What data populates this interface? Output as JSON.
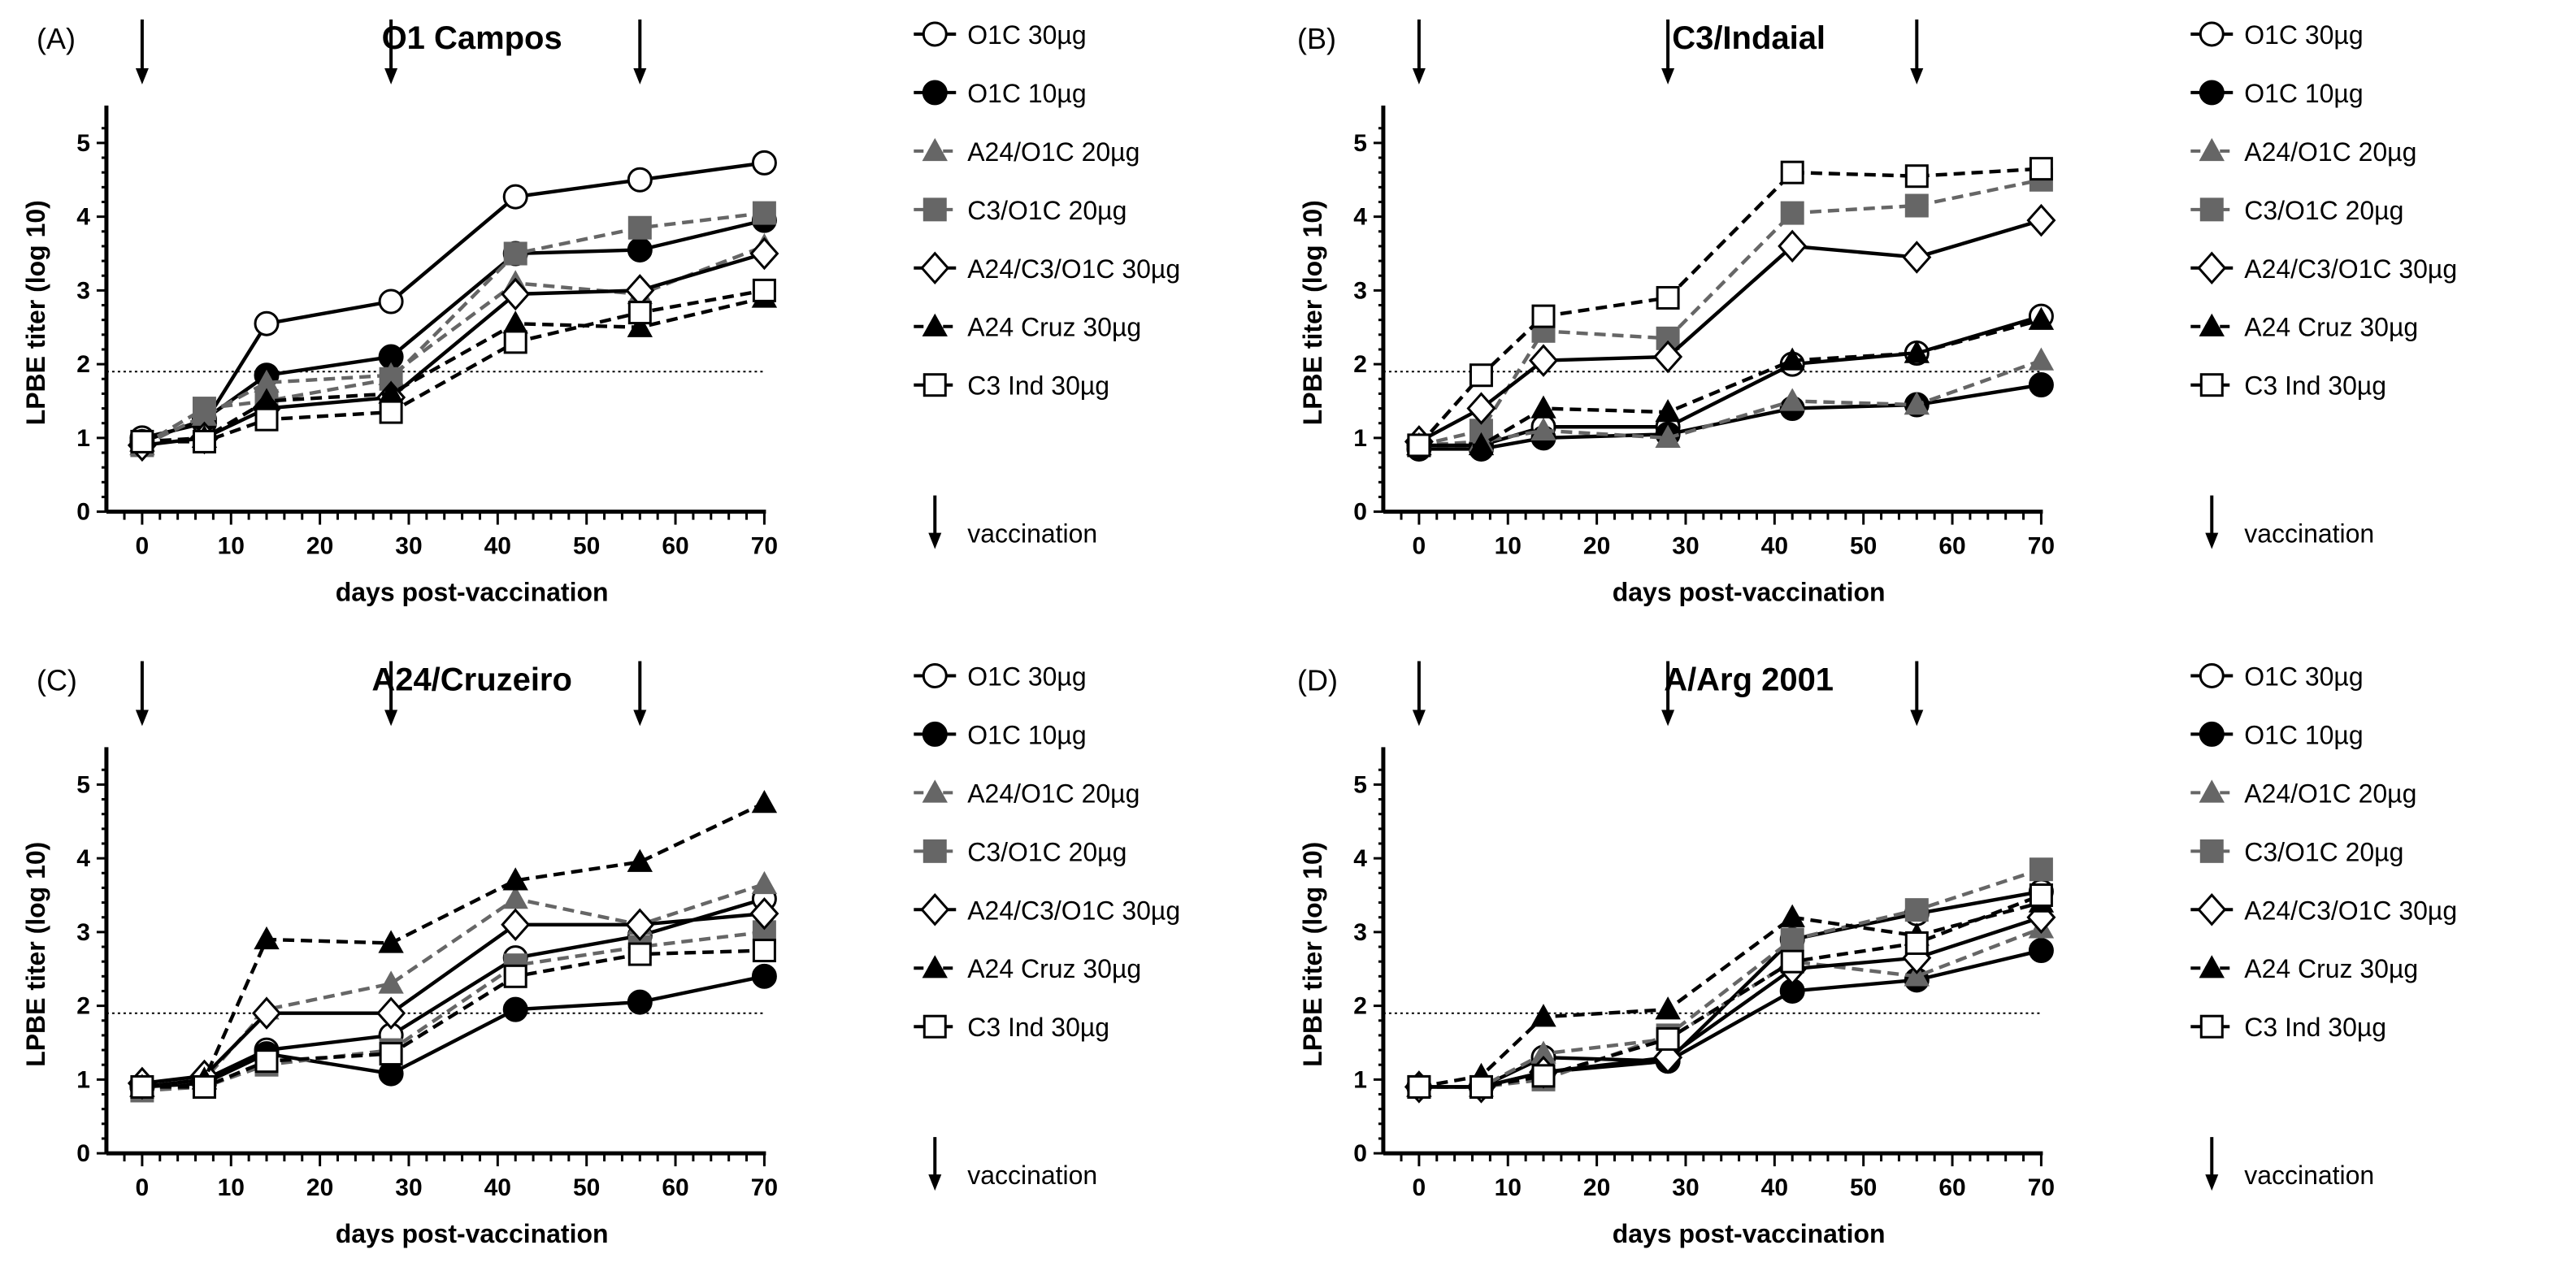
{
  "chart_data": [
    {
      "type": "line",
      "panel": "(A)",
      "title": "O1 Campos",
      "xlabel": "days post-vaccination",
      "ylabel": "LPBE titer (log 10)",
      "xlim": [
        0,
        70
      ],
      "ylim": [
        0,
        5
      ],
      "xticks": [
        0,
        10,
        20,
        30,
        40,
        50,
        60,
        70
      ],
      "yticks": [
        0,
        1,
        2,
        3,
        4,
        5
      ],
      "threshold": 1.9,
      "vaccination_days": [
        0,
        28,
        56
      ],
      "x": [
        0,
        7,
        14,
        28,
        42,
        56,
        70
      ],
      "series": [
        {
          "name": "O1C 30µg",
          "values": [
            1.0,
            1.2,
            2.55,
            2.85,
            4.27,
            4.5,
            4.73
          ]
        },
        {
          "name": "O1C 10µg",
          "values": [
            0.95,
            1.25,
            1.85,
            2.1,
            3.5,
            3.55,
            3.95
          ]
        },
        {
          "name": "A24/O1C 20µg",
          "values": [
            0.9,
            1.3,
            1.75,
            1.85,
            3.1,
            2.95,
            3.6
          ]
        },
        {
          "name": "C3/O1C 20µg",
          "values": [
            0.9,
            1.4,
            1.5,
            1.8,
            3.5,
            3.85,
            4.05
          ]
        },
        {
          "name": "A24/C3/O1C 30µg",
          "values": [
            0.9,
            1.0,
            1.4,
            1.55,
            2.95,
            3.0,
            3.5
          ]
        },
        {
          "name": "A24 Cruz 30µg",
          "values": [
            0.95,
            1.0,
            1.5,
            1.6,
            2.55,
            2.5,
            2.9
          ]
        },
        {
          "name": "C3 Ind 30µg",
          "values": [
            0.95,
            0.95,
            1.25,
            1.35,
            2.3,
            2.7,
            3.0
          ]
        }
      ],
      "legend_vaccination": "vaccination"
    },
    {
      "type": "line",
      "panel": "(B)",
      "title": "C3/Indaial",
      "xlabel": "days post-vaccination",
      "ylabel": "LPBE titer (log 10)",
      "xlim": [
        0,
        70
      ],
      "ylim": [
        0,
        5
      ],
      "xticks": [
        0,
        10,
        20,
        30,
        40,
        50,
        60,
        70
      ],
      "yticks": [
        0,
        1,
        2,
        3,
        4,
        5
      ],
      "threshold": 1.9,
      "vaccination_days": [
        0,
        28,
        56
      ],
      "x": [
        0,
        7,
        14,
        28,
        42,
        56,
        70
      ],
      "series": [
        {
          "name": "O1C 30µg",
          "values": [
            0.9,
            0.9,
            1.15,
            1.15,
            2.0,
            2.15,
            2.65
          ]
        },
        {
          "name": "O1C 10µg",
          "values": [
            0.85,
            0.85,
            1.0,
            1.05,
            1.4,
            1.45,
            1.72
          ]
        },
        {
          "name": "A24/O1C 20µg",
          "values": [
            0.9,
            0.95,
            1.1,
            1.0,
            1.5,
            1.45,
            2.05
          ]
        },
        {
          "name": "C3/O1C 20µg",
          "values": [
            0.9,
            1.1,
            2.45,
            2.35,
            4.05,
            4.15,
            4.5
          ]
        },
        {
          "name": "A24/C3/O1C 30µg",
          "values": [
            0.95,
            1.4,
            2.05,
            2.1,
            3.6,
            3.45,
            3.95
          ]
        },
        {
          "name": "A24 Cruz 30µg",
          "values": [
            0.9,
            0.9,
            1.4,
            1.35,
            2.05,
            2.15,
            2.6
          ]
        },
        {
          "name": "C3 Ind 30µg",
          "values": [
            0.9,
            1.85,
            2.65,
            2.9,
            4.6,
            4.55,
            4.65
          ]
        }
      ],
      "legend_vaccination": "vaccination"
    },
    {
      "type": "line",
      "panel": "(C)",
      "title": "A24/Cruzeiro",
      "xlabel": "days post-vaccination",
      "ylabel": "LPBE titer (log 10)",
      "xlim": [
        0,
        70
      ],
      "ylim": [
        0,
        5
      ],
      "xticks": [
        0,
        10,
        20,
        30,
        40,
        50,
        60,
        70
      ],
      "yticks": [
        0,
        1,
        2,
        3,
        4,
        5
      ],
      "threshold": 1.9,
      "vaccination_days": [
        0,
        28,
        56
      ],
      "x": [
        0,
        7,
        14,
        28,
        42,
        56,
        70
      ],
      "series": [
        {
          "name": "O1C 30µg",
          "values": [
            0.9,
            1.0,
            1.4,
            1.6,
            2.65,
            2.95,
            3.45
          ]
        },
        {
          "name": "O1C 10µg",
          "values": [
            0.9,
            0.95,
            1.35,
            1.08,
            1.95,
            2.05,
            2.4
          ]
        },
        {
          "name": "A24/O1C 20µg",
          "values": [
            0.9,
            1.0,
            1.95,
            2.3,
            3.45,
            3.1,
            3.65
          ]
        },
        {
          "name": "C3/O1C 20µg",
          "values": [
            0.85,
            0.9,
            1.2,
            1.4,
            2.55,
            2.8,
            3.0
          ]
        },
        {
          "name": "A24/C3/O1C 30µg",
          "values": [
            0.95,
            1.05,
            1.9,
            1.9,
            3.1,
            3.1,
            3.25
          ]
        },
        {
          "name": "A24 Cruz 30µg",
          "values": [
            0.9,
            1.0,
            2.9,
            2.85,
            3.7,
            3.95,
            4.75
          ]
        },
        {
          "name": "C3 Ind 30µg",
          "values": [
            0.9,
            0.9,
            1.25,
            1.35,
            2.4,
            2.7,
            2.75
          ]
        }
      ],
      "legend_vaccination": "vaccination"
    },
    {
      "type": "line",
      "panel": "(D)",
      "title": "A/Arg 2001",
      "xlabel": "days post-vaccination",
      "ylabel": "LPBE titer (log 10)",
      "xlim": [
        0,
        70
      ],
      "ylim": [
        0,
        5
      ],
      "xticks": [
        0,
        10,
        20,
        30,
        40,
        50,
        60,
        70
      ],
      "yticks": [
        0,
        1,
        2,
        3,
        4,
        5
      ],
      "threshold": 1.9,
      "vaccination_days": [
        0,
        28,
        56
      ],
      "x": [
        0,
        7,
        14,
        28,
        42,
        56,
        70
      ],
      "series": [
        {
          "name": "O1C 30µg",
          "values": [
            0.9,
            0.9,
            1.3,
            1.25,
            2.9,
            3.25,
            3.55
          ]
        },
        {
          "name": "O1C 10µg",
          "values": [
            0.9,
            0.9,
            1.1,
            1.25,
            2.2,
            2.35,
            2.75
          ]
        },
        {
          "name": "A24/O1C 20µg",
          "values": [
            0.9,
            0.9,
            1.35,
            1.55,
            2.6,
            2.4,
            3.05
          ]
        },
        {
          "name": "C3/O1C 20µg",
          "values": [
            0.9,
            0.9,
            1.0,
            1.6,
            2.9,
            3.3,
            3.85
          ]
        },
        {
          "name": "A24/C3/O1C 30µg",
          "values": [
            0.9,
            0.9,
            1.1,
            1.3,
            2.5,
            2.65,
            3.2
          ]
        },
        {
          "name": "A24 Cruz 30µg",
          "values": [
            0.9,
            1.05,
            1.85,
            1.95,
            3.2,
            2.95,
            3.4
          ]
        },
        {
          "name": "C3 Ind 30µg",
          "values": [
            0.9,
            0.9,
            1.05,
            1.55,
            2.6,
            2.85,
            3.5
          ]
        }
      ],
      "legend_vaccination": "vaccination"
    }
  ],
  "styles": {
    "series_colors": [
      "#000000",
      "#000000",
      "#666666",
      "#666666",
      "#000000",
      "#000000",
      "#000000"
    ],
    "series_markers": [
      "circle-open",
      "circle-filled",
      "triangle-filled",
      "square-filled",
      "diamond-open",
      "triangle-filled",
      "square-open"
    ],
    "series_dashed": [
      false,
      false,
      true,
      true,
      false,
      true,
      true
    ]
  }
}
